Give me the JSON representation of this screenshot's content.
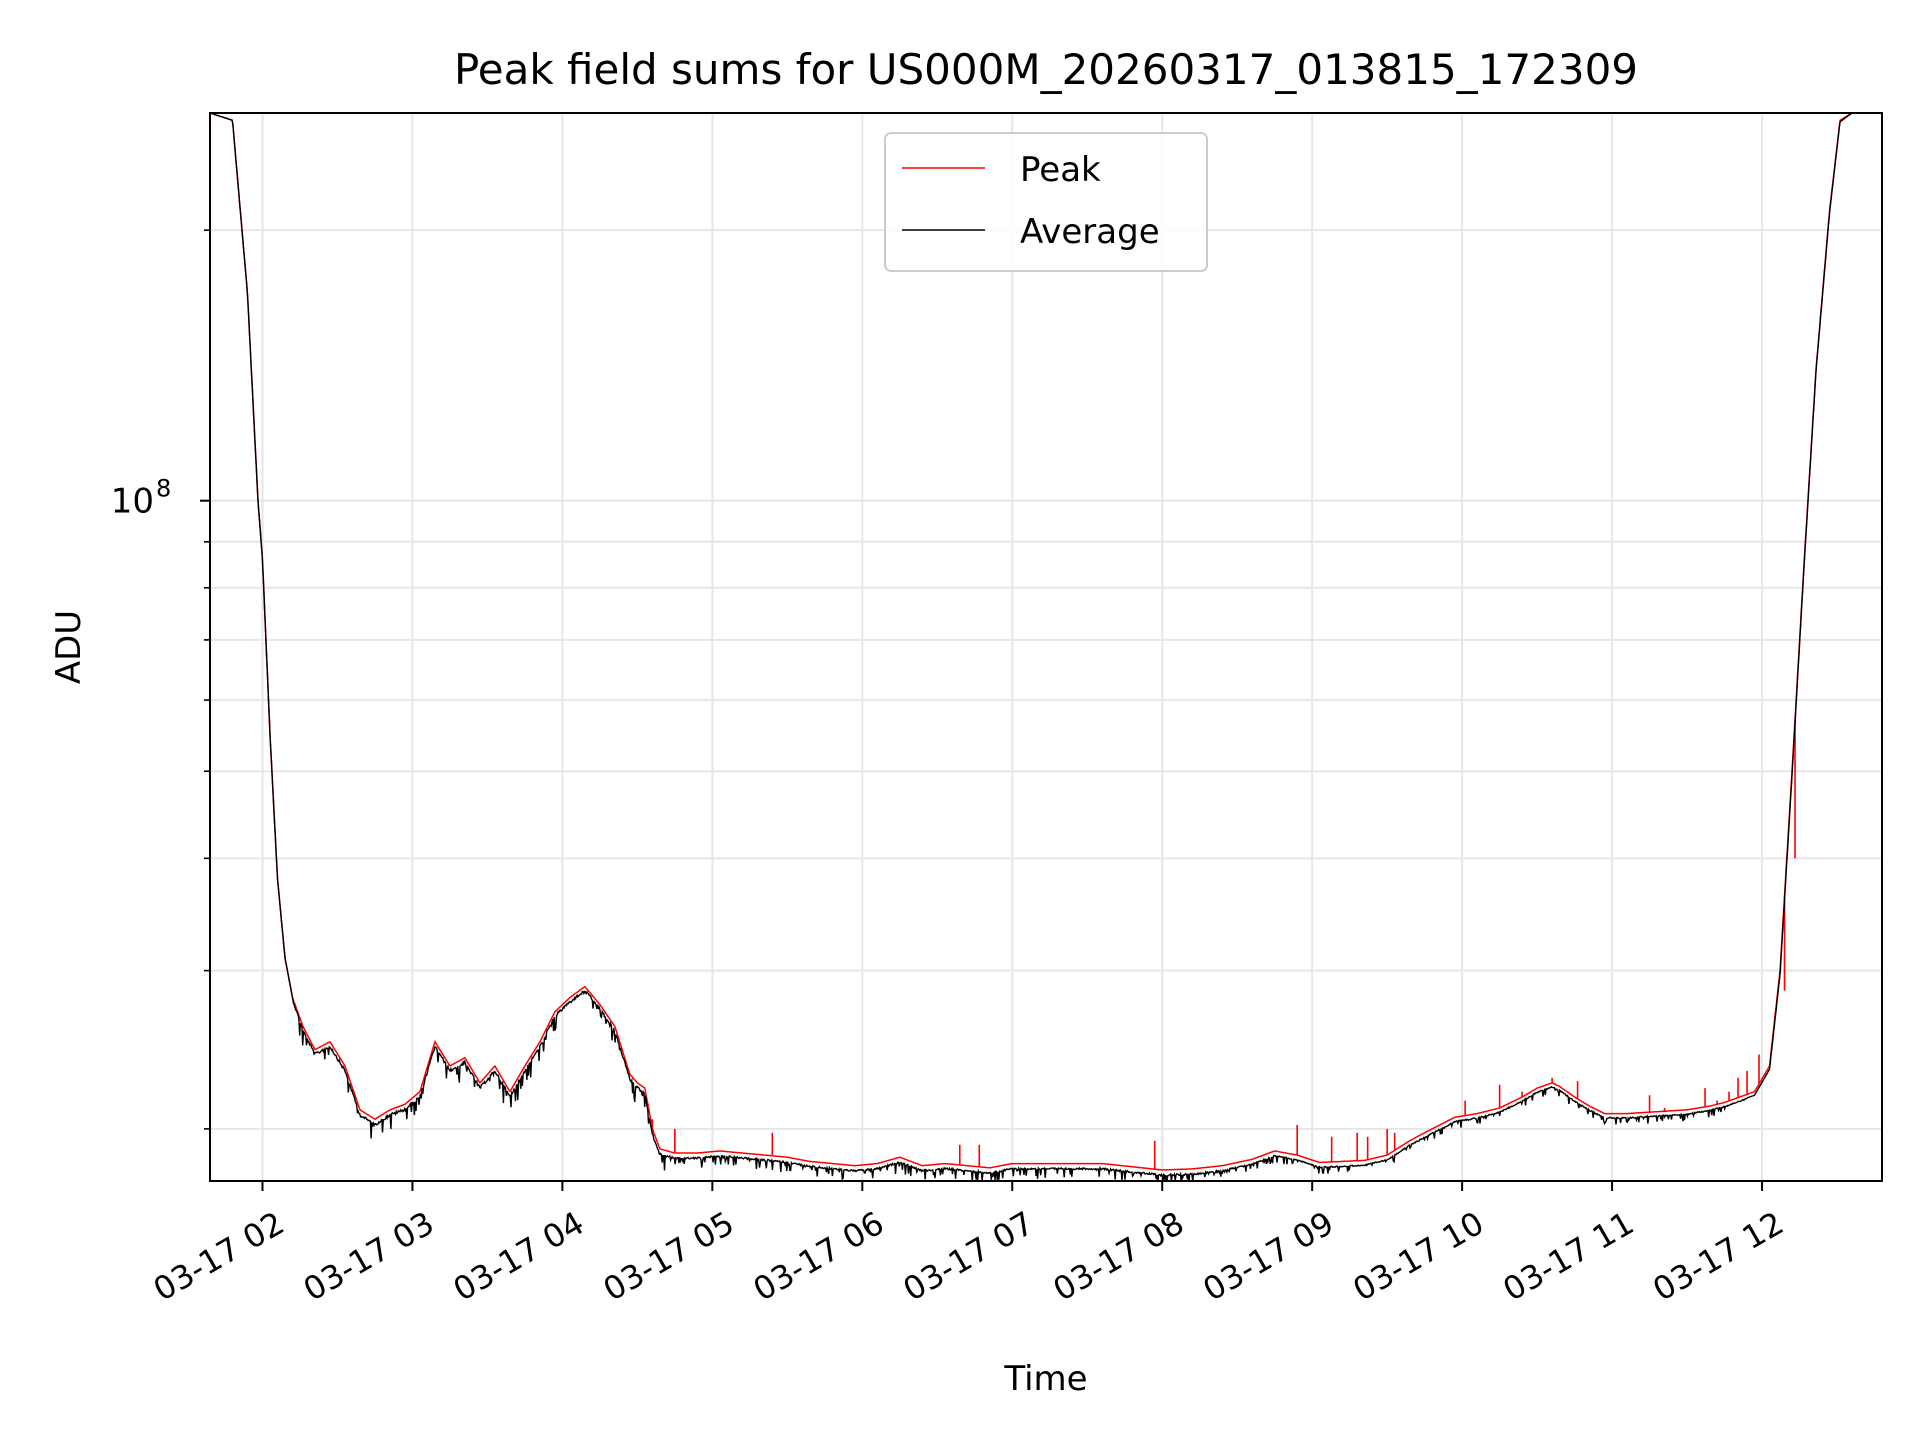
{
  "chart_data": {
    "type": "line",
    "title": "Peak field sums for US000M_20260317_013815_172309",
    "xlabel": "Time",
    "ylabel": "ADU",
    "y_scale": "log",
    "ylim": [
      17500000,
      270000000
    ],
    "xlim_hours": [
      1.65,
      12.8
    ],
    "grid": true,
    "legend_position": "upper-center",
    "x_ticks": [
      {
        "hour": 2,
        "label": "03-17 02"
      },
      {
        "hour": 3,
        "label": "03-17 03"
      },
      {
        "hour": 4,
        "label": "03-17 04"
      },
      {
        "hour": 5,
        "label": "03-17 05"
      },
      {
        "hour": 6,
        "label": "03-17 06"
      },
      {
        "hour": 7,
        "label": "03-17 07"
      },
      {
        "hour": 8,
        "label": "03-17 08"
      },
      {
        "hour": 9,
        "label": "03-17 09"
      },
      {
        "hour": 10,
        "label": "03-17 10"
      },
      {
        "hour": 11,
        "label": "03-17 11"
      },
      {
        "hour": 12,
        "label": "03-17 12"
      }
    ],
    "y_major_ticks": [
      {
        "value": 100000000,
        "base": "10",
        "exp": "8"
      }
    ],
    "y_minor_ticks": [
      20000000,
      30000000,
      40000000,
      50000000,
      60000000,
      70000000,
      80000000,
      90000000,
      200000000
    ],
    "series": [
      {
        "name": "Peak",
        "color": "#ff0000",
        "x_hours": [
          1.65,
          1.8,
          1.9,
          1.97,
          2.0,
          2.05,
          2.1,
          2.15,
          2.2,
          2.27,
          2.35,
          2.45,
          2.55,
          2.65,
          2.75,
          2.85,
          2.95,
          3.05,
          3.15,
          3.25,
          3.35,
          3.45,
          3.55,
          3.65,
          3.75,
          3.85,
          3.95,
          4.05,
          4.15,
          4.25,
          4.35,
          4.45,
          4.5,
          4.55,
          4.6,
          4.65,
          4.75,
          4.9,
          5.05,
          5.2,
          5.35,
          5.5,
          5.65,
          5.8,
          5.95,
          6.1,
          6.25,
          6.4,
          6.55,
          6.7,
          6.85,
          7.0,
          7.2,
          7.4,
          7.6,
          7.8,
          8.0,
          8.2,
          8.4,
          8.6,
          8.75,
          8.9,
          9.05,
          9.2,
          9.35,
          9.5,
          9.65,
          9.8,
          9.95,
          10.1,
          10.25,
          10.4,
          10.5,
          10.6,
          10.65,
          10.75,
          10.85,
          10.95,
          11.1,
          11.3,
          11.5,
          11.65,
          11.75,
          11.85,
          11.95,
          12.05,
          12.12,
          12.2,
          12.28,
          12.36,
          12.45,
          12.52,
          12.6
        ],
        "values": [
          270000000,
          265000000,
          170000000,
          100000000,
          86000000,
          55000000,
          38000000,
          31000000,
          28000000,
          26000000,
          24500000,
          25000000,
          23500000,
          21000000,
          20500000,
          21000000,
          21300000,
          22000000,
          25000000,
          23500000,
          24000000,
          22500000,
          23500000,
          22000000,
          23500000,
          25000000,
          27000000,
          28000000,
          28800000,
          27500000,
          26000000,
          23000000,
          22500000,
          22200000,
          20000000,
          19000000,
          18800000,
          18800000,
          18900000,
          18800000,
          18700000,
          18600000,
          18400000,
          18300000,
          18200000,
          18300000,
          18600000,
          18200000,
          18300000,
          18200000,
          18100000,
          18300000,
          18300000,
          18300000,
          18300000,
          18150000,
          18000000,
          18050000,
          18200000,
          18500000,
          18900000,
          18700000,
          18350000,
          18400000,
          18450000,
          18700000,
          19400000,
          20000000,
          20600000,
          20800000,
          21100000,
          21700000,
          22200000,
          22500000,
          22300000,
          21700000,
          21200000,
          20800000,
          20800000,
          20900000,
          21000000,
          21200000,
          21400000,
          21700000,
          22000000,
          23500000,
          30000000,
          50000000,
          85000000,
          140000000,
          210000000,
          265000000,
          270000000
        ],
        "spikes": [
          {
            "hour": 4.6,
            "value": 20500000
          },
          {
            "hour": 4.75,
            "value": 20000000
          },
          {
            "hour": 5.4,
            "value": 19800000
          },
          {
            "hour": 6.65,
            "value": 19200000
          },
          {
            "hour": 6.78,
            "value": 19200000
          },
          {
            "hour": 7.95,
            "value": 19400000
          },
          {
            "hour": 8.9,
            "value": 20200000
          },
          {
            "hour": 9.13,
            "value": 19600000
          },
          {
            "hour": 9.3,
            "value": 19800000
          },
          {
            "hour": 9.37,
            "value": 19600000
          },
          {
            "hour": 9.5,
            "value": 20000000
          },
          {
            "hour": 9.55,
            "value": 19800000
          },
          {
            "hour": 10.02,
            "value": 21500000
          },
          {
            "hour": 10.25,
            "value": 22400000
          },
          {
            "hour": 10.4,
            "value": 22000000
          },
          {
            "hour": 10.6,
            "value": 22800000
          },
          {
            "hour": 10.77,
            "value": 22600000
          },
          {
            "hour": 11.25,
            "value": 21800000
          },
          {
            "hour": 11.35,
            "value": 21100000
          },
          {
            "hour": 11.62,
            "value": 22200000
          },
          {
            "hour": 11.7,
            "value": 21500000
          },
          {
            "hour": 11.78,
            "value": 22000000
          },
          {
            "hour": 11.84,
            "value": 22800000
          },
          {
            "hour": 11.9,
            "value": 23200000
          },
          {
            "hour": 11.98,
            "value": 24200000
          },
          {
            "hour": 12.15,
            "value": 28500000
          },
          {
            "hour": 12.22,
            "value": 40000000
          }
        ]
      },
      {
        "name": "Average",
        "color": "#000000",
        "x_hours": [
          1.65,
          1.8,
          1.9,
          1.97,
          2.0,
          2.05,
          2.1,
          2.15,
          2.2,
          2.27,
          2.35,
          2.45,
          2.55,
          2.65,
          2.75,
          2.85,
          2.95,
          3.05,
          3.15,
          3.25,
          3.35,
          3.45,
          3.55,
          3.65,
          3.75,
          3.85,
          3.95,
          4.05,
          4.15,
          4.25,
          4.35,
          4.45,
          4.5,
          4.55,
          4.6,
          4.65,
          4.75,
          4.9,
          5.05,
          5.2,
          5.35,
          5.5,
          5.65,
          5.8,
          5.95,
          6.1,
          6.25,
          6.4,
          6.55,
          6.7,
          6.85,
          7.0,
          7.2,
          7.4,
          7.6,
          7.8,
          8.0,
          8.2,
          8.4,
          8.6,
          8.75,
          8.9,
          9.05,
          9.2,
          9.35,
          9.5,
          9.65,
          9.8,
          9.95,
          10.1,
          10.25,
          10.4,
          10.5,
          10.6,
          10.65,
          10.75,
          10.85,
          10.95,
          11.1,
          11.3,
          11.5,
          11.65,
          11.75,
          11.85,
          11.95,
          12.05,
          12.12,
          12.2,
          12.28,
          12.36,
          12.45,
          12.52,
          12.6
        ],
        "values": [
          270000000,
          265000000,
          170000000,
          100000000,
          86000000,
          55000000,
          38000000,
          31000000,
          28000000,
          25800000,
          24300000,
          24800000,
          23300000,
          20800000,
          20300000,
          20800000,
          21100000,
          21800000,
          24800000,
          23300000,
          23800000,
          22300000,
          23300000,
          21800000,
          23300000,
          24800000,
          26800000,
          27800000,
          28600000,
          27300000,
          25800000,
          22800000,
          22300000,
          22000000,
          19800000,
          18800000,
          18600000,
          18600000,
          18700000,
          18600000,
          18500000,
          18400000,
          18200000,
          18100000,
          18000000,
          18100000,
          18400000,
          18000000,
          18100000,
          18000000,
          17900000,
          18100000,
          18100000,
          18100000,
          18100000,
          17950000,
          17800000,
          17850000,
          18000000,
          18300000,
          18700000,
          18500000,
          18150000,
          18200000,
          18250000,
          18500000,
          19200000,
          19800000,
          20400000,
          20600000,
          20900000,
          21500000,
          22000000,
          22300000,
          22100000,
          21500000,
          21000000,
          20600000,
          20600000,
          20700000,
          20800000,
          21000000,
          21200000,
          21500000,
          21800000,
          23300000,
          29700000,
          49500000,
          84500000,
          139500000,
          209000000,
          264000000,
          270000000
        ],
        "noisy_from_hour": 2.2,
        "noisy_to_hour": 11.9
      }
    ]
  }
}
